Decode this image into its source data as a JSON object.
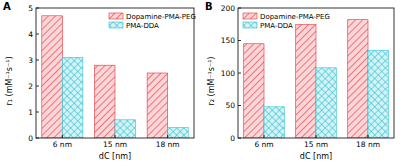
{
  "chart_data": [
    {
      "type": "bar",
      "title": "A",
      "categories": [
        "6 nm",
        "15 nm",
        "18 nm"
      ],
      "series": [
        {
          "name": "Dopamine-PMA-PEG",
          "color": "#e5333b",
          "values": [
            4.7,
            2.8,
            2.5
          ]
        },
        {
          "name": "PMA-DDA",
          "color": "#2fc3d3",
          "values": [
            3.1,
            0.7,
            0.4
          ]
        }
      ],
      "x_label": "dC [nm]",
      "y_label": "r₁ (mM⁻¹s⁻¹)",
      "ylim": [
        0,
        5
      ],
      "yticks": [
        0,
        1,
        2,
        3,
        4,
        5
      ],
      "legend": "upper right"
    },
    {
      "type": "bar",
      "title": "B",
      "categories": [
        "6 nm",
        "15 nm",
        "18 nm"
      ],
      "series": [
        {
          "name": "Dopamine-PMA-PEG",
          "color": "#e5333b",
          "values": [
            145,
            175,
            182
          ]
        },
        {
          "name": "PMA-DDA",
          "color": "#2fc3d3",
          "values": [
            48,
            108,
            135
          ]
        }
      ],
      "x_label": "dC [nm]",
      "y_label": "r₂ (mM⁻¹s⁻¹)",
      "ylim": [
        0,
        200
      ],
      "yticks": [
        0,
        50,
        100,
        150,
        200
      ],
      "legend": "upper left"
    }
  ]
}
